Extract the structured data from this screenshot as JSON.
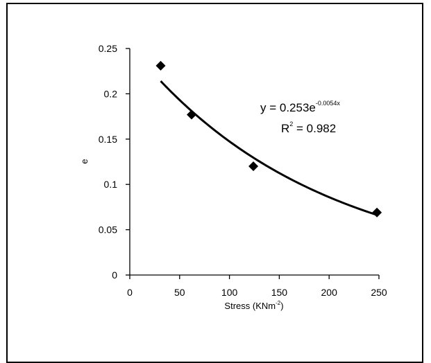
{
  "chart_data": {
    "type": "scatter",
    "title": "",
    "xlabel": "Stress (KNm",
    "xlabel_sup": "-2",
    "xlabel_close": ")",
    "ylabel": "e",
    "xlim": [
      0,
      250
    ],
    "ylim": [
      0,
      0.25
    ],
    "x_ticks": [
      0,
      50,
      100,
      150,
      200,
      250
    ],
    "y_ticks": [
      0,
      0.05,
      0.1,
      0.15,
      0.2,
      0.25
    ],
    "x_tick_labels": [
      "0",
      "50",
      "100",
      "150",
      "200",
      "250"
    ],
    "y_tick_labels": [
      "0",
      "0.05",
      "0.1",
      "0.15",
      "0.2",
      "0.25"
    ],
    "grid": false,
    "series": [
      {
        "points": [
          {
            "x": 31,
            "y": 0.231
          },
          {
            "x": 62,
            "y": 0.177
          },
          {
            "x": 124,
            "y": 0.12
          },
          {
            "x": 248,
            "y": 0.069
          }
        ]
      }
    ],
    "trendline": {
      "type": "exponential",
      "a": 0.253,
      "b": -0.0054,
      "x_range": [
        31,
        248
      ]
    },
    "annotations": {
      "equation": "y = 0.253e",
      "equation_exp": "-0.0054x",
      "r2_label": "R",
      "r2_sup": "2",
      "r2_value": " = 0.982"
    },
    "colors": {
      "marker": "#000000",
      "line": "#000000",
      "axis": "#000000"
    }
  }
}
